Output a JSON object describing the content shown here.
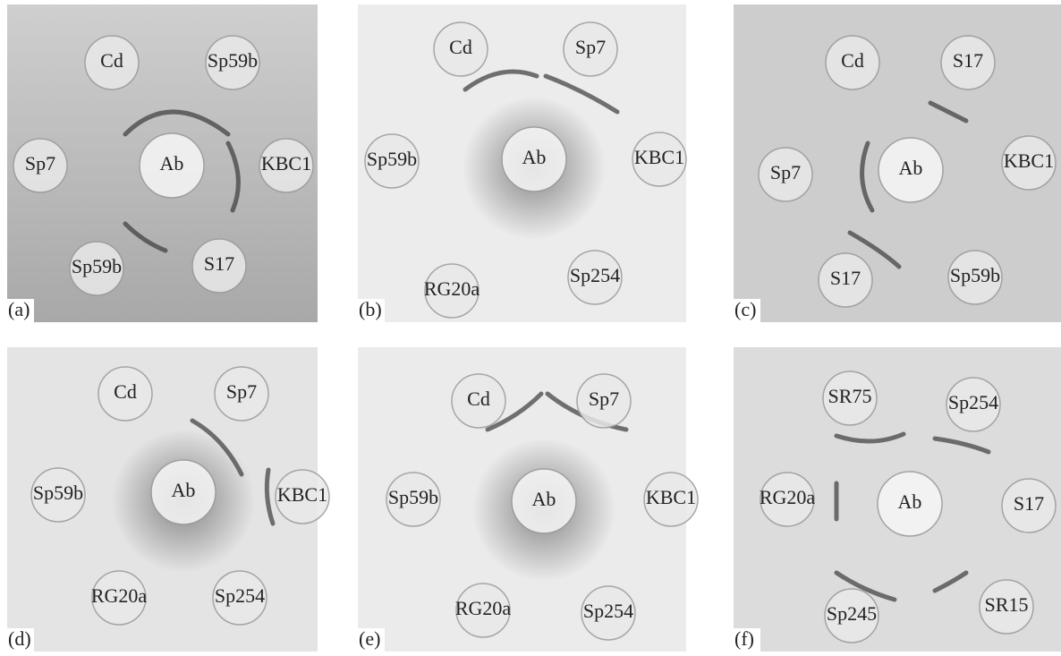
{
  "panels": [
    {
      "label": "(a)",
      "wells": [
        "Cd",
        "Sp59b",
        "Sp7",
        "Ab",
        "KBC1",
        "Sp59b",
        "S17"
      ]
    },
    {
      "label": "(b)",
      "wells": [
        "Cd",
        "Sp7",
        "Sp59b",
        "Ab",
        "KBC1",
        "RG20a",
        "Sp254"
      ]
    },
    {
      "label": "(c)",
      "wells": [
        "Cd",
        "S17",
        "Sp7",
        "Ab",
        "KBC1",
        "S17",
        "Sp59b"
      ]
    },
    {
      "label": "(d)",
      "wells": [
        "Cd",
        "Sp7",
        "Sp59b",
        "Ab",
        "KBC1",
        "RG20a",
        "Sp254"
      ]
    },
    {
      "label": "(e)",
      "wells": [
        "Cd",
        "Sp7",
        "Sp59b",
        "Ab",
        "KBC1",
        "RG20a",
        "Sp254"
      ]
    },
    {
      "label": "(f)",
      "wells": [
        "SR75",
        "Sp254",
        "RG20a",
        "Ab",
        "S17",
        "Sp245",
        "SR15"
      ]
    }
  ]
}
